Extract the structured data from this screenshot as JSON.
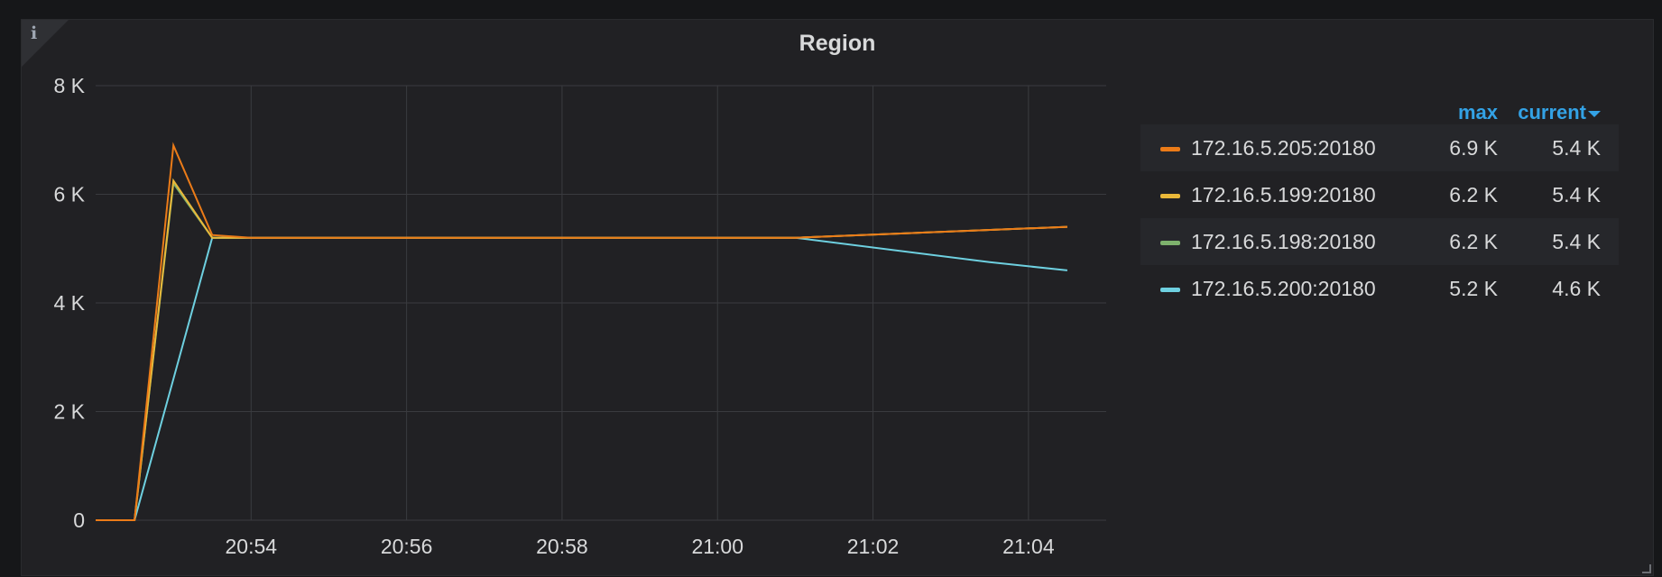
{
  "panel": {
    "title": "Region",
    "info_icon": "info-icon",
    "info_glyph": "i"
  },
  "chart_data": {
    "type": "line",
    "title": "Region",
    "xlabel": "",
    "ylabel": "",
    "ylim": [
      0,
      8000
    ],
    "yticks": [
      0,
      2000,
      4000,
      6000,
      8000
    ],
    "ytick_labels": [
      "0",
      "2 K",
      "4 K",
      "6 K",
      "8 K"
    ],
    "xlim": [
      "20:52:00",
      "21:05:00"
    ],
    "xticks": [
      "20:54",
      "20:56",
      "20:58",
      "21:00",
      "21:02",
      "21:04"
    ],
    "grid": true,
    "legend_placement": "right",
    "series": [
      {
        "name": "172.16.5.205:20180",
        "color": "#eb7b18",
        "x": [
          "20:52:00",
          "20:52:30",
          "20:53:00",
          "20:53:30",
          "20:54:00",
          "21:01:00",
          "21:04:30"
        ],
        "y": [
          0,
          0,
          6900,
          5250,
          5200,
          5200,
          5400
        ]
      },
      {
        "name": "172.16.5.199:20180",
        "color": "#eab839",
        "x": [
          "20:52:00",
          "20:52:30",
          "20:53:00",
          "20:53:30",
          "20:54:00",
          "21:01:00",
          "21:04:30"
        ],
        "y": [
          0,
          0,
          6250,
          5200,
          5200,
          5200,
          5400
        ]
      },
      {
        "name": "172.16.5.198:20180",
        "color": "#7eb26d",
        "x": [
          "20:52:00",
          "20:52:30",
          "20:53:00",
          "20:53:30",
          "20:54:00",
          "21:01:00",
          "21:04:30"
        ],
        "y": [
          0,
          0,
          6200,
          5200,
          5200,
          5200,
          5400
        ]
      },
      {
        "name": "172.16.5.200:20180",
        "color": "#6ed0e0",
        "x": [
          "20:52:00",
          "20:52:30",
          "20:53:00",
          "20:53:30",
          "20:54:00",
          "21:01:00",
          "21:03:30",
          "21:04:30"
        ],
        "y": [
          0,
          0,
          2600,
          5200,
          5200,
          5200,
          4750,
          4600
        ]
      }
    ]
  },
  "legend": {
    "header_max": "max",
    "header_current": "current",
    "rows": [
      {
        "name": "172.16.5.205:20180",
        "color": "#eb7b18",
        "max": "6.9 K",
        "current": "5.4 K"
      },
      {
        "name": "172.16.5.199:20180",
        "color": "#eab839",
        "max": "6.2 K",
        "current": "5.4 K"
      },
      {
        "name": "172.16.5.198:20180",
        "color": "#7eb26d",
        "max": "6.2 K",
        "current": "5.4 K"
      },
      {
        "name": "172.16.5.200:20180",
        "color": "#6ed0e0",
        "max": "5.2 K",
        "current": "4.6 K"
      }
    ]
  }
}
